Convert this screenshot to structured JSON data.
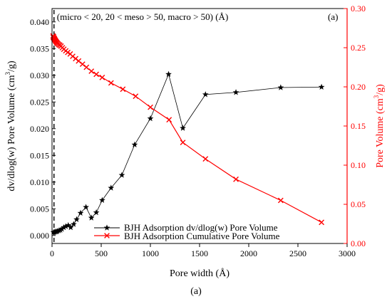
{
  "chart_data": {
    "type": "line",
    "annotation": "(micro < 20, 20 < meso > 50, macro > 50) (Å)",
    "panel_label": "(a)",
    "caption": "(a)",
    "xlabel": "Pore width (Å)",
    "xlim": [
      0,
      3000
    ],
    "x_ticks": [
      0,
      500,
      1000,
      1500,
      2000,
      2500,
      3000
    ],
    "vline_x": 20,
    "colors": {
      "left": "#000000",
      "right": "#ff0000"
    },
    "y_left": {
      "label_main": "dv/dlog(w) Pore Volume (cm",
      "label_sup": "3",
      "label_end": "/g)",
      "ylim": [
        -0.0015,
        0.0425
      ],
      "ticks": [
        "0.000",
        "0.005",
        "0.010",
        "0.015",
        "0.020",
        "0.025",
        "0.030",
        "0.035",
        "0.040"
      ],
      "tick_values": [
        0,
        0.005,
        0.01,
        0.015,
        0.02,
        0.025,
        0.03,
        0.035,
        0.04
      ]
    },
    "y_right": {
      "label_main": "Pore Volume (cm",
      "label_sup": "3",
      "label_end": "/g)",
      "ylim": [
        0,
        0.3
      ],
      "ticks": [
        "0.00",
        "0.05",
        "0.10",
        "0.15",
        "0.20",
        "0.25",
        "0.30"
      ],
      "tick_values": [
        0,
        0.05,
        0.1,
        0.15,
        0.2,
        0.25,
        0.3
      ]
    },
    "series": [
      {
        "name": "BJH Adsorption dv/dlog(w) Pore Volume",
        "axis": "left",
        "color": "#000000",
        "marker": "star",
        "points": [
          [
            15,
            0.0006
          ],
          [
            25,
            0.0006
          ],
          [
            35,
            0.0007
          ],
          [
            45,
            0.0007
          ],
          [
            55,
            0.0008
          ],
          [
            70,
            0.0009
          ],
          [
            85,
            0.001
          ],
          [
            100,
            0.0012
          ],
          [
            120,
            0.0015
          ],
          [
            140,
            0.0017
          ],
          [
            165,
            0.0019
          ],
          [
            190,
            0.0015
          ],
          [
            220,
            0.0021
          ],
          [
            250,
            0.003
          ],
          [
            290,
            0.0042
          ],
          [
            345,
            0.0053
          ],
          [
            400,
            0.0033
          ],
          [
            450,
            0.0043
          ],
          [
            510,
            0.0066
          ],
          [
            600,
            0.0089
          ],
          [
            710,
            0.0113
          ],
          [
            840,
            0.017
          ],
          [
            1000,
            0.0219
          ],
          [
            1185,
            0.0302
          ],
          [
            1330,
            0.0201
          ],
          [
            1560,
            0.0264
          ],
          [
            1870,
            0.0268
          ],
          [
            2325,
            0.0277
          ],
          [
            2740,
            0.0278
          ]
        ]
      },
      {
        "name": "BJH Adsorption Cumulative Pore Volume",
        "axis": "right",
        "color": "#ff0000",
        "marker": "x",
        "points": [
          [
            10,
            0.265
          ],
          [
            13,
            0.263
          ],
          [
            16,
            0.264
          ],
          [
            19,
            0.262
          ],
          [
            22,
            0.262
          ],
          [
            26,
            0.261
          ],
          [
            30,
            0.26
          ],
          [
            35,
            0.259
          ],
          [
            40,
            0.258
          ],
          [
            46,
            0.257
          ],
          [
            52,
            0.256
          ],
          [
            60,
            0.255
          ],
          [
            70,
            0.254
          ],
          [
            80,
            0.253
          ],
          [
            92,
            0.252
          ],
          [
            105,
            0.25
          ],
          [
            120,
            0.248
          ],
          [
            140,
            0.246
          ],
          [
            160,
            0.244
          ],
          [
            185,
            0.242
          ],
          [
            210,
            0.239
          ],
          [
            240,
            0.236
          ],
          [
            270,
            0.233
          ],
          [
            310,
            0.229
          ],
          [
            350,
            0.225
          ],
          [
            400,
            0.22
          ],
          [
            450,
            0.216
          ],
          [
            510,
            0.212
          ],
          [
            600,
            0.205
          ],
          [
            720,
            0.197
          ],
          [
            850,
            0.188
          ],
          [
            1000,
            0.174
          ],
          [
            1190,
            0.158
          ],
          [
            1330,
            0.129
          ],
          [
            1560,
            0.108
          ],
          [
            1870,
            0.082
          ],
          [
            2325,
            0.055
          ],
          [
            2740,
            0.027
          ]
        ]
      }
    ],
    "legend_position": "bottom-center"
  }
}
